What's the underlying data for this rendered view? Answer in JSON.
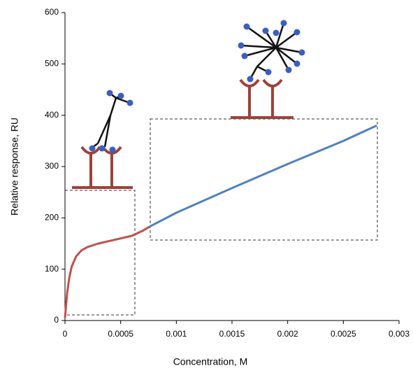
{
  "chart_data": {
    "type": "line",
    "xlabel": "Concentration, M",
    "ylabel": "Relative response, RU",
    "xlim": [
      0,
      0.003
    ],
    "xticks": [
      0,
      0.0005,
      0.001,
      0.0015,
      0.002,
      0.0025,
      0.003
    ],
    "ylim": [
      0,
      600
    ],
    "yticks": [
      0,
      100,
      200,
      300,
      400,
      500,
      600
    ],
    "grid": false,
    "series": [
      {
        "color": "#c0504d",
        "x": [
          0,
          1e-05,
          2e-05,
          4e-05,
          6e-05,
          0.0001,
          0.00015,
          0.0002,
          0.0003,
          0.0004,
          0.0005,
          0.0006,
          0.0007,
          0.00076
        ],
        "values": [
          5,
          30,
          55,
          85,
          105,
          125,
          137,
          143,
          150,
          155,
          160,
          165,
          175,
          183
        ]
      },
      {
        "color": "#4f81bd",
        "x": [
          0.00076,
          0.001,
          0.0015,
          0.002,
          0.0025,
          0.0028
        ],
        "values": [
          183,
          210,
          258,
          305,
          350,
          380
        ]
      }
    ]
  }
}
